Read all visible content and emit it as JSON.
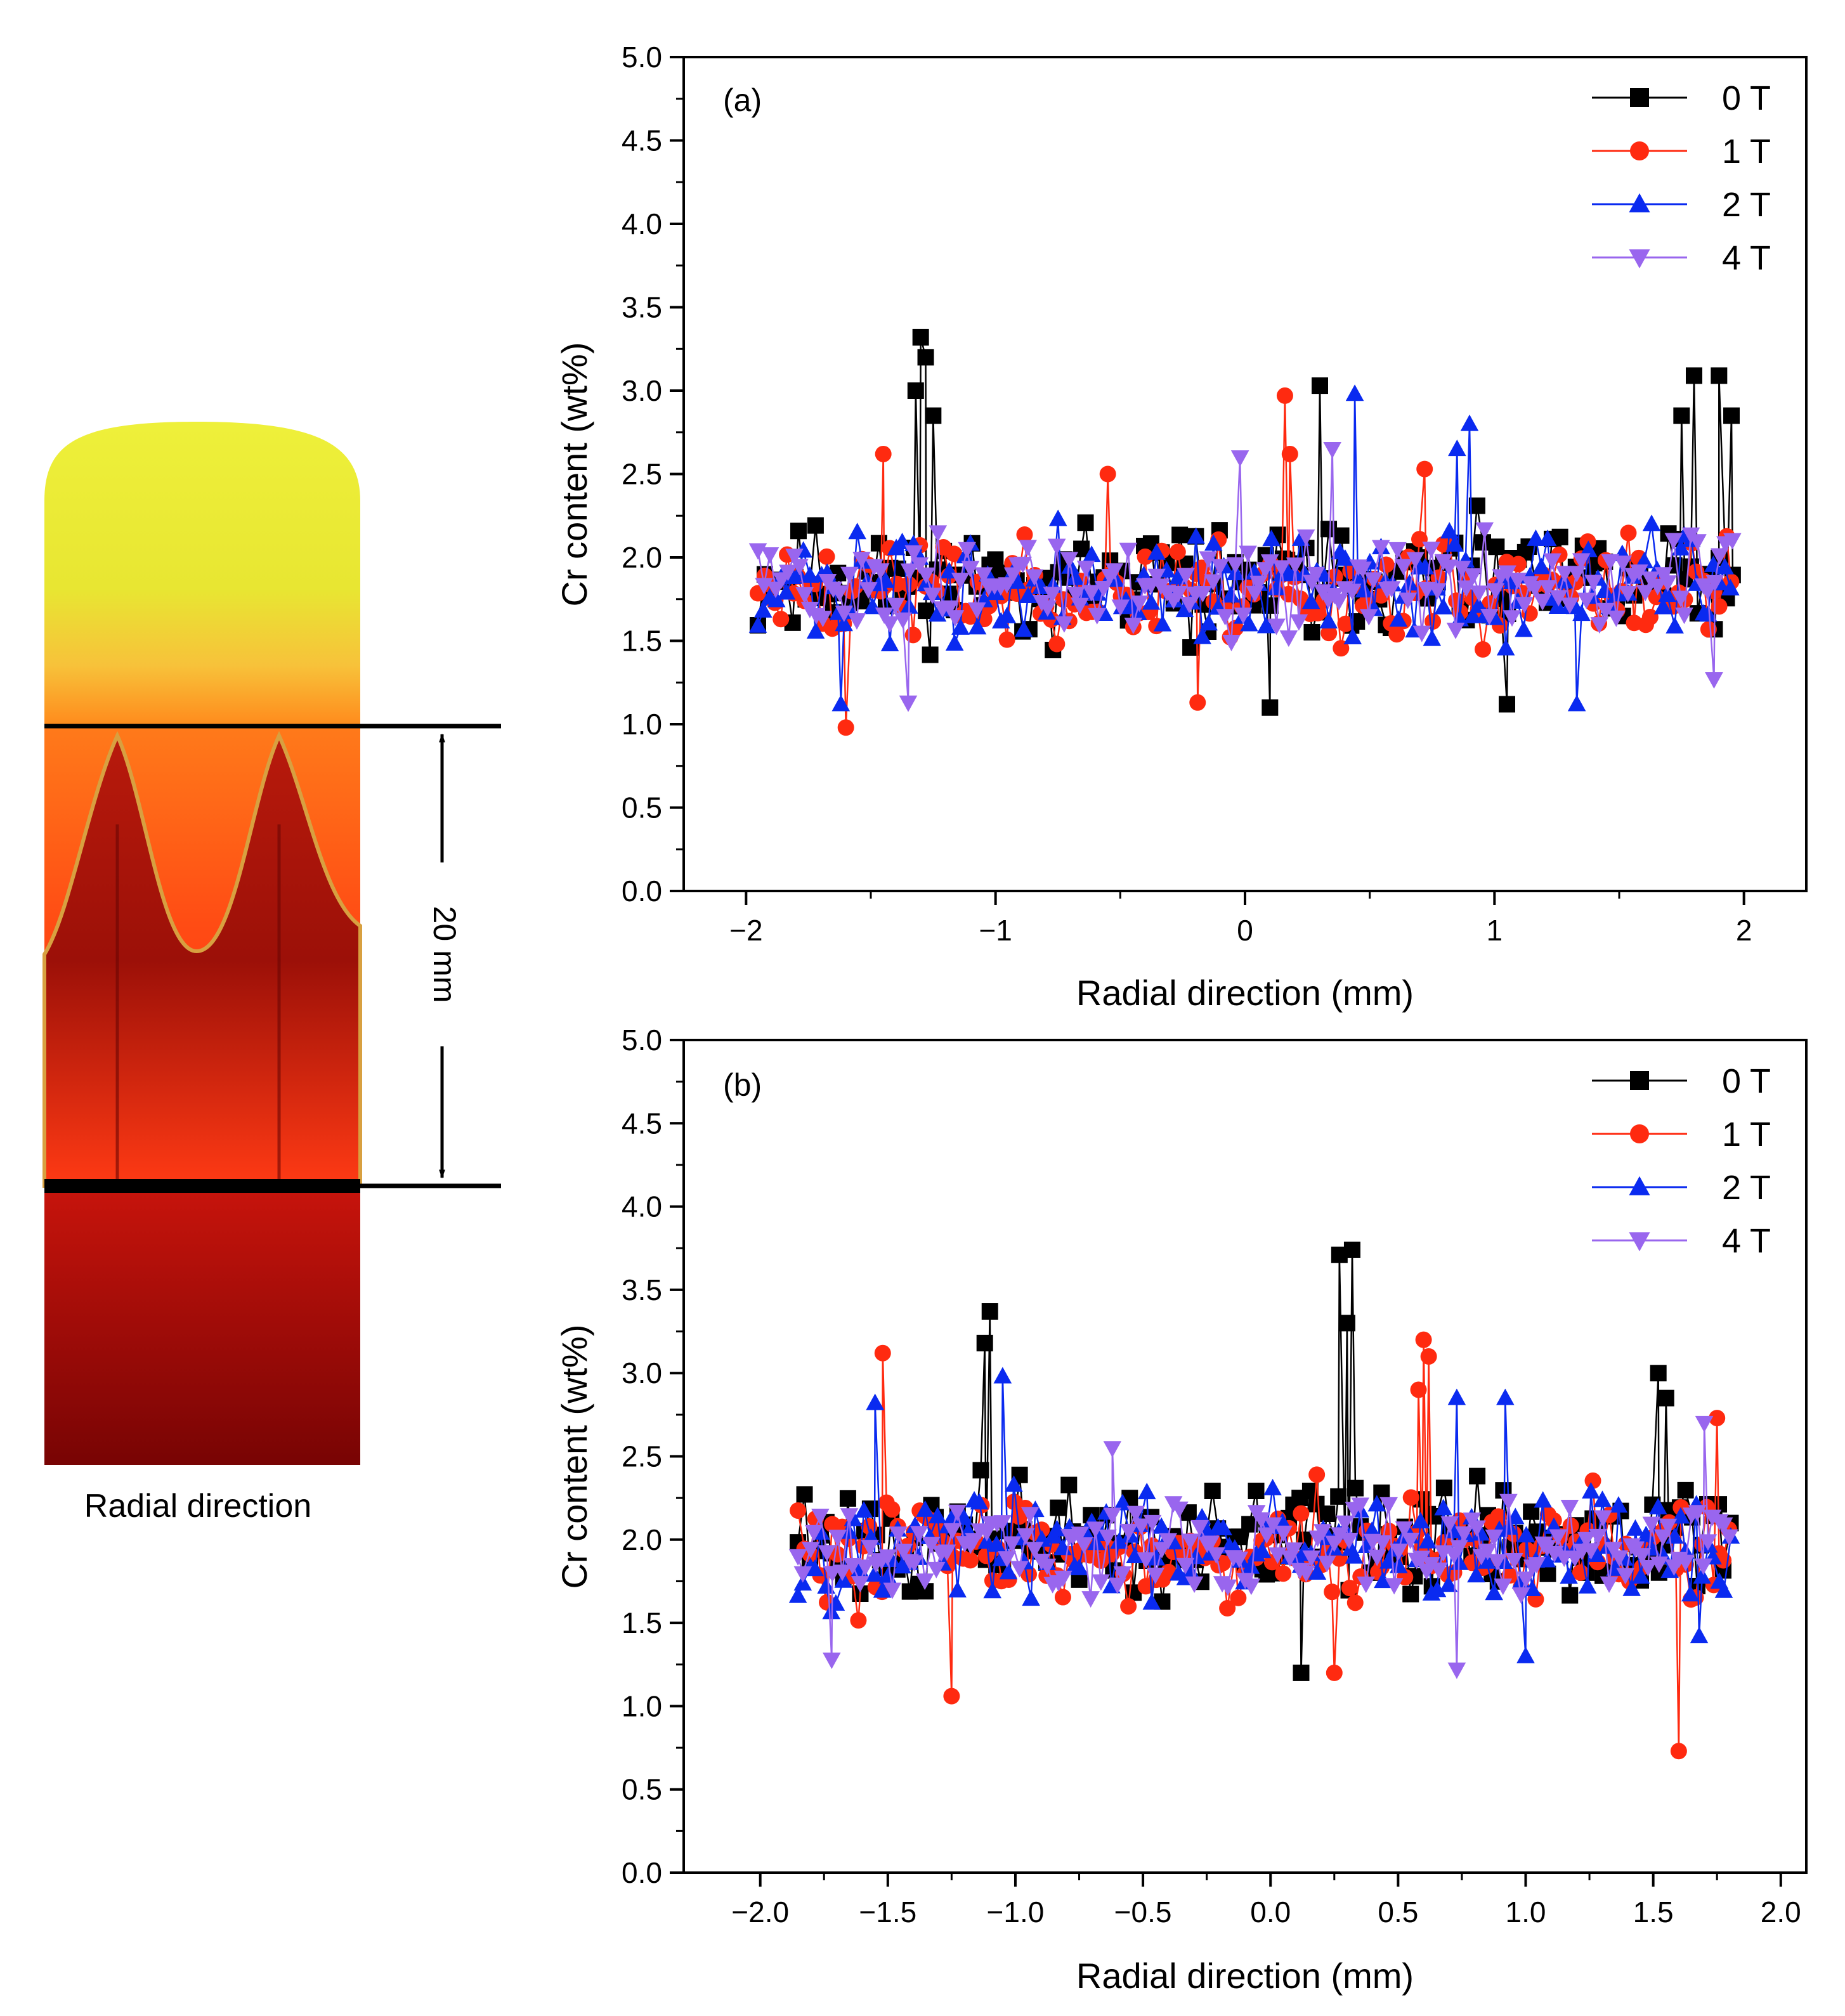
{
  "schematic": {
    "caption": "Radial direction",
    "scale_label": "20 mm",
    "colors": {
      "top_liquid": "#eef03a",
      "mushy_top": "#ff7a1a",
      "mushy_bottom": "#ff2a10",
      "dendrite": "#a81208",
      "solid_top": "#c8140c",
      "solid_bottom": "#780404"
    }
  },
  "chart_data": [
    {
      "type": "line-scatter",
      "panel_label": "(a)",
      "xlabel": "Radial direction (mm)",
      "ylabel": "Cr content (wt%)",
      "xlim": [
        -2.25,
        2.25
      ],
      "ylim": [
        0,
        5
      ],
      "xticks": [
        -2,
        -1,
        0,
        1,
        2
      ],
      "xtick_labels": [
        "−2",
        "−1",
        "0",
        "1",
        "2"
      ],
      "yticks": [
        0,
        0.5,
        1,
        1.5,
        2,
        2.5,
        3,
        3.5,
        4,
        4.5,
        5
      ],
      "ytick_labels": [
        "0.0",
        "0.5",
        "1.0",
        "1.5",
        "2.0",
        "2.5",
        "3.0",
        "3.5",
        "4.0",
        "4.5",
        "5.0"
      ],
      "legend": [
        "0 T",
        "1 T",
        "2 T",
        "4 T"
      ],
      "legend_position": "top-right",
      "x_range": [
        -1.95,
        1.95
      ],
      "series": [
        {
          "name": "0 T",
          "color": "#000000",
          "marker": "square",
          "mean": 1.85,
          "spread": 0.28,
          "seed": 11,
          "peaks": [
            [
              -1.3,
              3.32
            ],
            [
              -1.28,
              3.2
            ],
            [
              -1.32,
              3.0
            ],
            [
              -1.25,
              2.85
            ],
            [
              0.3,
              3.03
            ],
            [
              1.8,
              3.09
            ],
            [
              1.9,
              3.09
            ],
            [
              1.75,
              2.85
            ],
            [
              1.95,
              2.85
            ],
            [
              0.1,
              1.1
            ],
            [
              1.05,
              1.12
            ]
          ]
        },
        {
          "name": "1 T",
          "color": "#ff2a10",
          "marker": "circle",
          "mean": 1.8,
          "spread": 0.27,
          "seed": 23,
          "peaks": [
            [
              0.16,
              2.97
            ],
            [
              0.18,
              2.62
            ],
            [
              -1.45,
              2.62
            ],
            [
              -1.6,
              0.98
            ],
            [
              -0.19,
              1.13
            ],
            [
              -0.55,
              2.5
            ],
            [
              0.72,
              2.53
            ]
          ]
        },
        {
          "name": "2 T",
          "color": "#0a2af0",
          "marker": "triangle-up",
          "mean": 1.8,
          "spread": 0.27,
          "seed": 37,
          "peaks": [
            [
              0.44,
              2.98
            ],
            [
              0.9,
              2.8
            ],
            [
              0.85,
              2.65
            ],
            [
              -1.62,
              1.12
            ],
            [
              1.33,
              1.12
            ]
          ]
        },
        {
          "name": "4 T",
          "color": "#9966ee",
          "marker": "triangle-down",
          "mean": 1.85,
          "spread": 0.24,
          "seed": 51,
          "peaks": [
            [
              0.35,
              2.65
            ],
            [
              -0.02,
              2.6
            ],
            [
              -1.35,
              1.13
            ],
            [
              1.88,
              1.27
            ]
          ]
        }
      ]
    },
    {
      "type": "line-scatter",
      "panel_label": "(b)",
      "xlabel": "Radial direction (mm)",
      "ylabel": "Cr content (wt%)",
      "xlim": [
        -2.3,
        2.1
      ],
      "ylim": [
        0,
        5
      ],
      "xticks": [
        -2,
        -1.5,
        -1,
        -0.5,
        0,
        0.5,
        1,
        1.5,
        2
      ],
      "xtick_labels": [
        "−2.0",
        "−1.5",
        "−1.0",
        "−0.5",
        "0.0",
        "0.5",
        "1.0",
        "1.5",
        "2.0"
      ],
      "yticks": [
        0,
        0.5,
        1,
        1.5,
        2,
        2.5,
        3,
        3.5,
        4,
        4.5,
        5
      ],
      "ytick_labels": [
        "0.0",
        "0.5",
        "1.0",
        "1.5",
        "2.0",
        "2.5",
        "3.0",
        "3.5",
        "4.0",
        "4.5",
        "5.0"
      ],
      "legend": [
        "0 T",
        "1 T",
        "2 T",
        "4 T"
      ],
      "legend_position": "top-right",
      "x_range": [
        -1.85,
        1.8
      ],
      "series": [
        {
          "name": "0 T",
          "color": "#000000",
          "marker": "square",
          "mean": 2.0,
          "spread": 0.28,
          "seed": 71,
          "peaks": [
            [
              0.27,
              3.71
            ],
            [
              0.32,
              3.74
            ],
            [
              0.3,
              3.3
            ],
            [
              -1.1,
              3.37
            ],
            [
              -1.12,
              3.18
            ],
            [
              1.52,
              3.0
            ],
            [
              1.55,
              2.85
            ],
            [
              0.12,
              1.2
            ]
          ]
        },
        {
          "name": "1 T",
          "color": "#ff2a10",
          "marker": "circle",
          "mean": 1.95,
          "spread": 0.28,
          "seed": 83,
          "peaks": [
            [
              0.6,
              3.2
            ],
            [
              0.62,
              3.1
            ],
            [
              0.58,
              2.9
            ],
            [
              -1.52,
              3.12
            ],
            [
              -1.25,
              1.06
            ],
            [
              1.6,
              0.73
            ],
            [
              1.75,
              2.73
            ],
            [
              0.25,
              1.2
            ]
          ]
        },
        {
          "name": "2 T",
          "color": "#0a2af0",
          "marker": "triangle-up",
          "mean": 1.95,
          "spread": 0.27,
          "seed": 97,
          "peaks": [
            [
              -1.05,
              2.98
            ],
            [
              0.73,
              2.85
            ],
            [
              0.92,
              2.85
            ],
            [
              -1.55,
              2.82
            ],
            [
              1.68,
              1.42
            ],
            [
              1.0,
              1.3
            ]
          ]
        },
        {
          "name": "4 T",
          "color": "#9966ee",
          "marker": "triangle-down",
          "mean": 1.95,
          "spread": 0.24,
          "seed": 109,
          "peaks": [
            [
              -1.72,
              1.28
            ],
            [
              0.73,
              1.22
            ],
            [
              1.7,
              2.7
            ],
            [
              -0.62,
              2.55
            ]
          ]
        }
      ]
    }
  ]
}
